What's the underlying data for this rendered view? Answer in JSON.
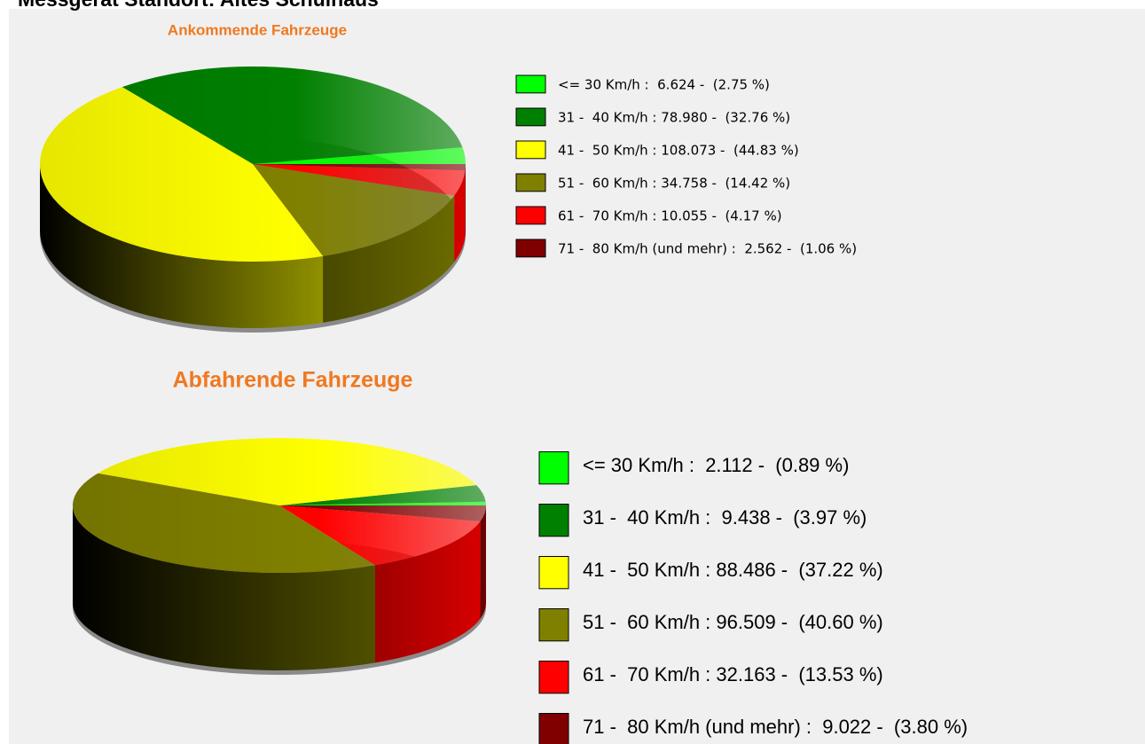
{
  "header": {
    "title": "Messgerät Standort: Altes Schulhaus"
  },
  "chart_data": [
    {
      "type": "pie",
      "title": "Ankommende Fahrzeuge",
      "labels": [
        "<= 30 Km/h :  6.624 -  (2.75 %)",
        "31 -  40 Km/h : 78.980 -  (32.76 %)",
        "41 -  50 Km/h : 108.073 -  (44.83 %)",
        "51 -  60 Km/h : 34.758 -  (14.42 %)",
        "61 -  70 Km/h : 10.055 -  (4.17 %)",
        "71 -  80 Km/h (und mehr) :  2.562 -  (1.06 %)"
      ],
      "values": [
        2.75,
        32.76,
        44.83,
        14.42,
        4.17,
        1.06
      ],
      "colors": [
        "#00ff00",
        "#008000",
        "#ffff00",
        "#808000",
        "#ff0000",
        "#800000"
      ]
    },
    {
      "type": "pie",
      "title": "Abfahrende Fahrzeuge",
      "labels": [
        "<= 30 Km/h :  2.112 -  (0.89 %)",
        "31 -  40 Km/h :  9.438 -  (3.97 %)",
        "41 -  50 Km/h : 88.486 -  (37.22 %)",
        "51 -  60 Km/h : 96.509 -  (40.60 %)",
        "61 -  70 Km/h : 32.163 -  (13.53 %)",
        "71 -  80 Km/h (und mehr) :  9.022 -  (3.80 %)"
      ],
      "values": [
        0.89,
        3.97,
        37.22,
        40.6,
        13.53,
        3.8
      ],
      "colors": [
        "#00ff00",
        "#008000",
        "#ffff00",
        "#808000",
        "#ff0000",
        "#800000"
      ]
    }
  ]
}
